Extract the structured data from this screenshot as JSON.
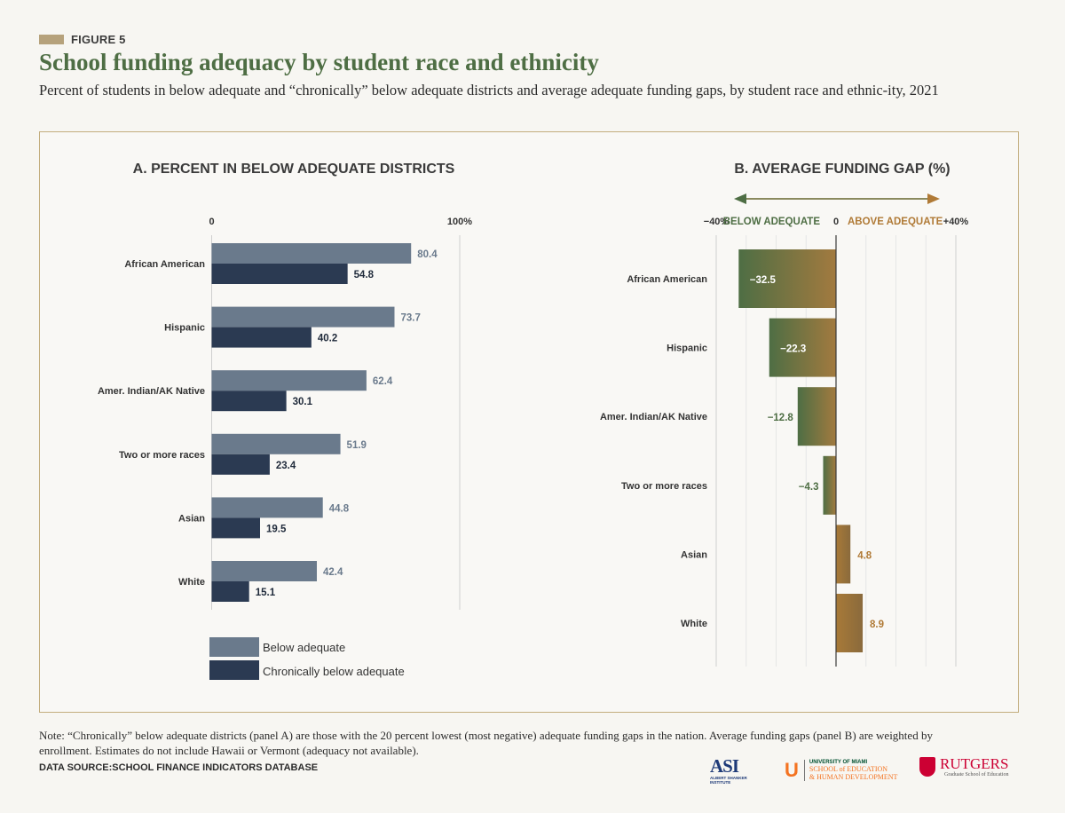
{
  "figure": {
    "label": "FIGURE 5",
    "title": "School funding adequacy by student race and ethnicity",
    "subtitle": "Percent of students in below adequate and “chronically” below adequate districts and average adequate funding gaps, by student race and ethnic-ity, 2021",
    "note": "Note: “Chronically” below adequate districts (panel A) are those with the 20 percent lowest (most negative) adequate funding gaps in the nation. Average funding gaps (panel B) are weighted by enrollment. Estimates do not include Hawaii or Vermont (adequacy not available).",
    "source": "DATA SOURCE:SCHOOL FINANCE INDICATORS DATABASE",
    "colors": {
      "title": "#4e6e44",
      "below": "#6a7a8c",
      "chronic": "#2b3a52",
      "negative": "#4e6e44",
      "positive": "#b07a36",
      "frame": "#c3ad7e"
    }
  },
  "logos": {
    "asi_mark": "ASI",
    "asi_sub": "ALBERT SHANKER INSTITUTE",
    "um_mark": "U",
    "um_line1": "UNIVERSITY OF MIAMI",
    "um_line2": "SCHOOL of EDUCATION",
    "um_line3": "& HUMAN DEVELOPMENT",
    "rutgers_name": "RUTGERS",
    "rutgers_sub": "Graduate School of Education"
  },
  "chart_data": [
    {
      "type": "bar",
      "orientation": "horizontal",
      "title": "A. PERCENT IN BELOW ADEQUATE DISTRICTS",
      "categories": [
        "African American",
        "Hispanic",
        "Amer. Indian/AK Native",
        "Two or more races",
        "Asian",
        "White"
      ],
      "series": [
        {
          "name": "Below adequate",
          "values": [
            80.4,
            73.7,
            62.4,
            51.9,
            44.8,
            42.4
          ]
        },
        {
          "name": "Chronically below adequate",
          "values": [
            54.8,
            40.2,
            30.1,
            23.4,
            19.5,
            15.1
          ]
        }
      ],
      "xlim": [
        0,
        100
      ],
      "tick_labels": [
        "0",
        "100%"
      ],
      "legend": "bottom-left"
    },
    {
      "type": "bar",
      "orientation": "horizontal",
      "title": "B. AVERAGE FUNDING GAP (%)",
      "categories": [
        "African American",
        "Hispanic",
        "Amer. Indian/AK Native",
        "Two or more races",
        "Asian",
        "White"
      ],
      "values": [
        -32.5,
        -22.3,
        -12.8,
        -4.3,
        4.8,
        8.9
      ],
      "value_labels": [
        "−32.5",
        "−22.3",
        "−12.8",
        "−4.3",
        "4.8",
        "8.9"
      ],
      "xlim": [
        -40,
        40
      ],
      "tick_labels": [
        "−40%",
        "0",
        "+40%"
      ],
      "direction_labels": {
        "negative": "BELOW ADEQUATE",
        "positive": "ABOVE ADEQUATE"
      },
      "grid": true
    }
  ]
}
